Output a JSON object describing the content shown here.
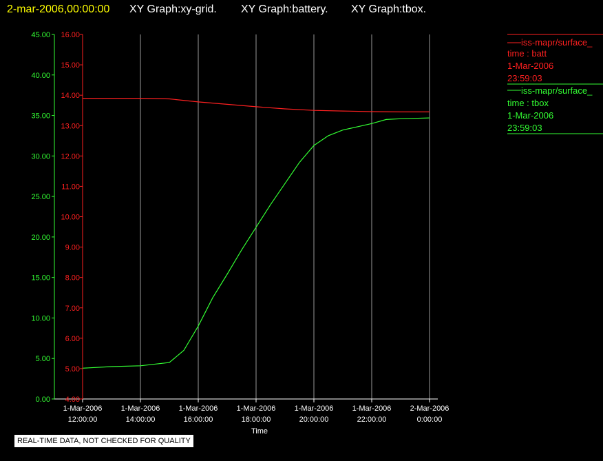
{
  "header": {
    "date": "2-mar-2006,00:00:00",
    "graphs": [
      "XY Graph:xy-grid.",
      "XY Graph:battery.",
      "XY Graph:tbox."
    ]
  },
  "legend": [
    {
      "label": "iss-mapr/surface_",
      "field": "time : batt",
      "date": "1-Mar-2006",
      "time": "23:59:03",
      "color": "#ff2020"
    },
    {
      "label": "iss-mapr/surface_",
      "field": "time : tbox",
      "date": "1-Mar-2006",
      "time": "23:59:03",
      "color": "#33ff33"
    }
  ],
  "disclaimer": "REAL-TIME DATA, NOT CHECKED FOR QUALITY",
  "chart_data": {
    "type": "line",
    "xlabel": "Time",
    "x_ticks": [
      [
        "1-Mar-2006",
        "12:00:00"
      ],
      [
        "1-Mar-2006",
        "14:00:00"
      ],
      [
        "1-Mar-2006",
        "16:00:00"
      ],
      [
        "1-Mar-2006",
        "18:00:00"
      ],
      [
        "1-Mar-2006",
        "20:00:00"
      ],
      [
        "1-Mar-2006",
        "22:00:00"
      ],
      [
        "2-Mar-2006",
        "0:00:00"
      ]
    ],
    "x_hours": [
      12,
      14,
      16,
      18,
      20,
      22,
      24
    ],
    "xlim_hours": [
      12,
      24
    ],
    "grid": "vertical",
    "y_axes": [
      {
        "side": "inner",
        "color": "#ff2020",
        "ylim": [
          4,
          16
        ],
        "ticks": [
          "4.00",
          "5.00",
          "6.00",
          "7.00",
          "8.00",
          "9.00",
          "10.00",
          "11.00",
          "12.00",
          "13.00",
          "14.00",
          "15.00",
          "16.00"
        ]
      },
      {
        "side": "outer",
        "color": "#33ff33",
        "ylim": [
          0,
          45
        ],
        "ticks": [
          "0.00",
          "5.00",
          "10.00",
          "15.00",
          "20.00",
          "25.00",
          "30.00",
          "35.00",
          "40.00",
          "45.00"
        ]
      }
    ],
    "series": [
      {
        "name": "time : batt",
        "axis": 0,
        "color": "#ff2020",
        "points": [
          [
            12,
            13.9
          ],
          [
            13,
            13.9
          ],
          [
            14,
            13.9
          ],
          [
            15,
            13.88
          ],
          [
            16,
            13.78
          ],
          [
            17,
            13.7
          ],
          [
            18,
            13.62
          ],
          [
            19,
            13.55
          ],
          [
            20,
            13.5
          ],
          [
            21,
            13.48
          ],
          [
            22,
            13.46
          ],
          [
            23,
            13.45
          ],
          [
            24,
            13.45
          ]
        ]
      },
      {
        "name": "time : tbox",
        "axis": 1,
        "color": "#33ff33",
        "points": [
          [
            12,
            3.8
          ],
          [
            13,
            4.0
          ],
          [
            14,
            4.1
          ],
          [
            15,
            4.5
          ],
          [
            15.5,
            6.0
          ],
          [
            16,
            9.0
          ],
          [
            16.5,
            12.5
          ],
          [
            17,
            15.4
          ],
          [
            17.5,
            18.4
          ],
          [
            18,
            21.2
          ],
          [
            18.5,
            24.0
          ],
          [
            19,
            26.6
          ],
          [
            19.5,
            29.2
          ],
          [
            20,
            31.3
          ],
          [
            20.5,
            32.5
          ],
          [
            21,
            33.2
          ],
          [
            22,
            34.0
          ],
          [
            22.5,
            34.5
          ],
          [
            23,
            34.6
          ],
          [
            24,
            34.7
          ]
        ]
      }
    ]
  }
}
